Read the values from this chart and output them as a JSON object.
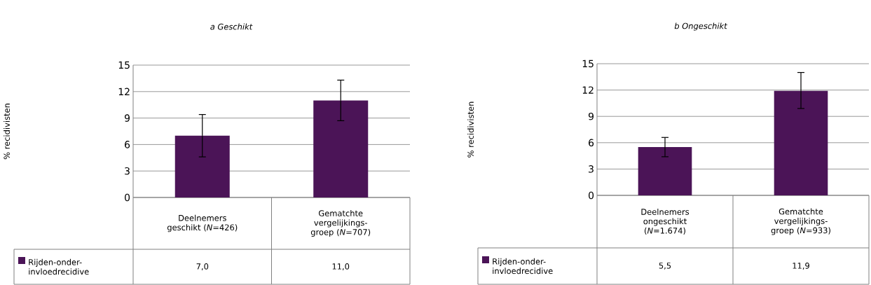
{
  "chart_data": [
    {
      "type": "bar",
      "title": "a Geschikt",
      "ylabel": "% recidivisten",
      "categories": [
        "Deelnemers geschikt (*N*=426)",
        "Gematchte vergelijkings-groep (*N*=707)"
      ],
      "ylim": [
        0,
        15
      ],
      "yticks": [
        0,
        3,
        6,
        9,
        12,
        15
      ],
      "grid": "y",
      "legend": "bottom left",
      "series": [
        {
          "name": "Rijden-onder-invloedrecidive",
          "color": "#4b1457",
          "values": [
            7.0,
            11.0
          ],
          "errors": [
            [
              4.6,
              9.4
            ],
            [
              8.7,
              13.3
            ]
          ],
          "value_labels": [
            "7,0",
            "11,0"
          ]
        }
      ]
    },
    {
      "type": "bar",
      "title": "b Ongeschikt",
      "ylabel": "% recidivisten",
      "categories": [
        "Deelnemers ongeschikt (*N*=1.674)",
        "Gematchte vergelijkings-groep (*N*=933)"
      ],
      "ylim": [
        0,
        15
      ],
      "yticks": [
        0,
        3,
        6,
        9,
        12,
        15
      ],
      "grid": "y",
      "legend": "bottom left",
      "series": [
        {
          "name": "Rijden-onder-invloedrecidive",
          "color": "#4b1457",
          "values": [
            5.5,
            11.9
          ],
          "errors": [
            [
              4.4,
              6.6
            ],
            [
              9.9,
              14.0
            ]
          ],
          "value_labels": [
            "5,5",
            "11,9"
          ]
        }
      ]
    }
  ]
}
